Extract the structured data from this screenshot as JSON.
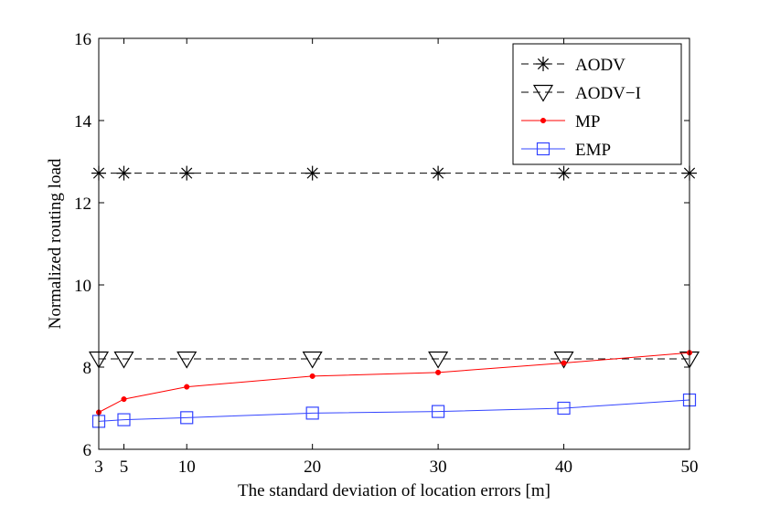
{
  "chart_data": {
    "type": "line",
    "title": "",
    "xlabel": "The standard deviation of location errors [m]",
    "ylabel": "Normalized routing load",
    "xlim": [
      3,
      50
    ],
    "ylim": [
      6,
      16
    ],
    "x": [
      3,
      5,
      10,
      20,
      30,
      40,
      50
    ],
    "xticks": [
      3,
      5,
      10,
      20,
      30,
      40,
      50
    ],
    "yticks": [
      6,
      8,
      10,
      12,
      14,
      16
    ],
    "legend_position": "top-right",
    "series": [
      {
        "name": "AODV",
        "color": "#000000",
        "line": "dashed",
        "marker": "asterisk",
        "values": [
          12.72,
          12.72,
          12.72,
          12.72,
          12.72,
          12.72,
          12.72
        ]
      },
      {
        "name": "AODV−I",
        "color": "#000000",
        "line": "dashed",
        "marker": "triangle-down",
        "values": [
          8.2,
          8.2,
          8.2,
          8.2,
          8.2,
          8.2,
          8.2
        ]
      },
      {
        "name": "MP",
        "color": "#ff0000",
        "line": "solid",
        "marker": "dot",
        "values": [
          6.9,
          7.22,
          7.52,
          7.78,
          7.87,
          8.1,
          8.35
        ]
      },
      {
        "name": "EMP",
        "color": "#3344ff",
        "line": "solid",
        "marker": "square",
        "values": [
          6.68,
          6.72,
          6.77,
          6.88,
          6.92,
          7.0,
          7.2
        ]
      }
    ]
  }
}
